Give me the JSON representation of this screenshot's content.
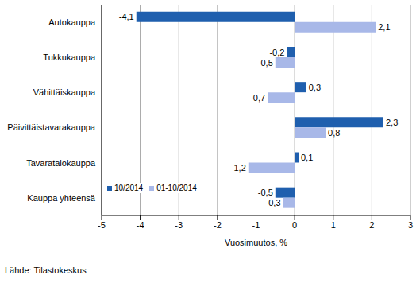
{
  "chart_data": {
    "type": "bar",
    "orientation": "horizontal",
    "categories": [
      "Autokauppa",
      "Tukkukauppa",
      "Vähittäiskauppa",
      "Päivittäistavarakauppa",
      "Tavaratalokauppa",
      "Kauppa yhteensä"
    ],
    "series": [
      {
        "name": "10/2014",
        "color": "#1f5fae",
        "values": [
          -4.1,
          -0.2,
          0.3,
          2.3,
          0.1,
          -0.5
        ],
        "value_labels": [
          "-4,1",
          "-0,2",
          "0,3",
          "2,3",
          "0,1",
          "-0,5"
        ]
      },
      {
        "name": "01-10/2014",
        "color": "#a8b8e8",
        "values": [
          2.1,
          -0.5,
          -0.7,
          0.8,
          -1.2,
          -0.3
        ],
        "value_labels": [
          "2,1",
          "-0,5",
          "-0,7",
          "0,8",
          "-1,2",
          "-0,3"
        ]
      }
    ],
    "xlim": [
      -5,
      3
    ],
    "xticks": [
      -5,
      -4,
      -3,
      -2,
      -1,
      0,
      1,
      2,
      3
    ],
    "xlabel": "Vuosimuutos, %",
    "source": "Lähde: Tilastokeskus",
    "grid": true,
    "legend": "lower left",
    "data_labels": true
  }
}
